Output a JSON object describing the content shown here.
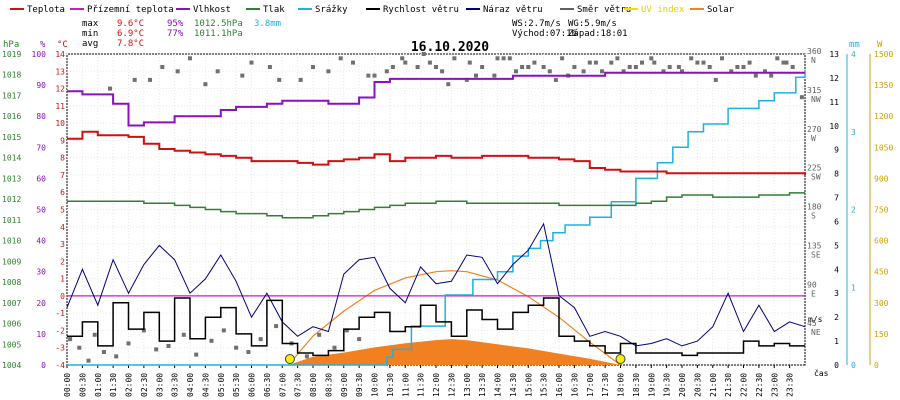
{
  "chart_data": {
    "type": "line",
    "title": "16.10.2020",
    "legend": [
      {
        "label": "Teplota",
        "color": "#d01010"
      },
      {
        "label": "Přízemní teplota",
        "color": "#c020c0"
      },
      {
        "label": "Vlhkost",
        "color": "#8a10c0"
      },
      {
        "label": "Tlak",
        "color": "#308030"
      },
      {
        "label": "Srážky",
        "color": "#20b0e0"
      },
      {
        "label": "Rychlost větru",
        "color": "#000000"
      },
      {
        "label": "Náraz větru",
        "color": "#000080"
      },
      {
        "label": "Směr větru",
        "color": "#606060"
      },
      {
        "label": "UV index",
        "color": "#f0e000"
      },
      {
        "label": "Solar",
        "color": "#f08020"
      }
    ],
    "stats": {
      "max_label": "max",
      "max_temp": "9.6°C",
      "max_hum": "95%",
      "max_press": "1012.5hPa",
      "rain": "3.8mm",
      "min_label": "min",
      "min_temp": "6.9°C",
      "min_hum": "77%",
      "min_press": "1011.1hPa",
      "avg_label": "avg",
      "avg_temp": "7.8°C",
      "ws": "WS:2.7m/s",
      "wg": "WG:5.9m/s",
      "sunrise": "Východ:07:16",
      "sunset": "Západ:18:01"
    },
    "axes": {
      "hpa_title": "hPa",
      "pct_title": "%",
      "degc_title": "°C",
      "hpa_ticks": [
        "1019",
        "1018",
        "1017",
        "1016",
        "1015",
        "1014",
        "1013",
        "1012",
        "1011",
        "1010",
        "1009",
        "1008",
        "1007",
        "1006",
        "1005",
        "1004"
      ],
      "pct_ticks": [
        "100",
        "90",
        "80",
        "70",
        "60",
        "50",
        "40",
        "30",
        "20",
        "10",
        "0"
      ],
      "degc_ticks": [
        "14",
        "13",
        "12",
        "11",
        "10",
        "9",
        "8",
        "7",
        "6",
        "5",
        "4",
        "3",
        "2",
        "1",
        "0",
        "-1",
        "-2",
        "-3",
        "-4"
      ],
      "dir_ticks": [
        "360\nN",
        "315\nNW",
        "270\nW",
        "225\nSW",
        "180\nS",
        "135\nSE",
        "90\nE",
        "45\nNE"
      ],
      "mm_title": "mm",
      "mm_ticks": [
        "4",
        "3",
        "2",
        "1",
        "0"
      ],
      "ms_title": "m/s",
      "ms_ticks": [
        "13",
        "12",
        "11",
        "10",
        "9",
        "8",
        "7",
        "6",
        "5",
        "4",
        "3",
        "2",
        "1",
        "0"
      ],
      "wm2_title": "W",
      "wm2_ticks": [
        "1500",
        "1350",
        "1200",
        "1050",
        "900",
        "750",
        "600",
        "450",
        "300",
        "150",
        "0"
      ],
      "x_title": "čas",
      "x_ticks": [
        "00:00",
        "00:30",
        "01:00",
        "01:30",
        "02:00",
        "02:30",
        "03:00",
        "03:30",
        "04:00",
        "04:30",
        "05:00",
        "05:30",
        "06:00",
        "06:30",
        "07:00",
        "07:30",
        "08:00",
        "08:30",
        "09:00",
        "09:30",
        "10:00",
        "10:30",
        "11:00",
        "11:30",
        "12:00",
        "12:30",
        "13:00",
        "13:30",
        "14:00",
        "14:30",
        "15:00",
        "15:30",
        "16:00",
        "16:30",
        "17:00",
        "17:30",
        "18:00",
        "18:30",
        "19:00",
        "19:30",
        "20:00",
        "20:30",
        "21:00",
        "21:30",
        "22:00",
        "22:30",
        "23:00",
        "23:30"
      ]
    },
    "temperature_c": {
      "x_hours": [
        0,
        0.5,
        1,
        1.5,
        2,
        2.5,
        3,
        3.5,
        4,
        4.5,
        5,
        5.5,
        6,
        6.5,
        7,
        7.5,
        8,
        8.5,
        9,
        9.5,
        10,
        10.5,
        11,
        11.5,
        12,
        12.5,
        13,
        13.5,
        14,
        14.5,
        15,
        15.5,
        16,
        16.5,
        17,
        17.5,
        18,
        18.5,
        19,
        19.5,
        20,
        20.5,
        21,
        21.5,
        22,
        22.5,
        23,
        23.5,
        24
      ],
      "values": [
        9.1,
        9.5,
        9.3,
        9.3,
        9.2,
        8.8,
        8.5,
        8.4,
        8.3,
        8.2,
        8.1,
        8.0,
        7.8,
        7.8,
        7.8,
        7.7,
        7.6,
        7.8,
        7.9,
        8.0,
        8.2,
        7.8,
        8.0,
        8.0,
        8.1,
        8.0,
        8.0,
        8.1,
        8.1,
        8.1,
        8.0,
        8.0,
        7.9,
        7.8,
        7.4,
        7.3,
        7.2,
        7.2,
        7.2,
        7.1,
        7.1,
        7.1,
        7.1,
        7.1,
        7.1,
        7.1,
        7.1,
        7.1,
        7.0
      ]
    },
    "humidity_pct": {
      "x_hours": [
        0,
        0.5,
        1,
        1.5,
        2,
        2.5,
        3,
        3.5,
        4,
        4.5,
        5,
        5.5,
        6,
        6.5,
        7,
        7.5,
        8,
        8.5,
        9,
        9.5,
        10,
        10.5,
        11,
        11.5,
        12,
        12.5,
        13,
        13.5,
        14,
        14.5,
        15,
        15.5,
        16,
        16.5,
        17,
        17.5,
        18,
        18.5,
        19,
        19.5,
        20,
        20.5,
        21,
        21.5,
        22,
        22.5,
        23,
        23.5,
        24
      ],
      "values": [
        88,
        87,
        87,
        84,
        77,
        78,
        78,
        80,
        80,
        80,
        82,
        83,
        83,
        84,
        85,
        85,
        85,
        84,
        84,
        86,
        91,
        92,
        92,
        92,
        92,
        92,
        92,
        92,
        92,
        93,
        93,
        93,
        93,
        93,
        93,
        94,
        94,
        94,
        94,
        94,
        94,
        94,
        94,
        94,
        94,
        94,
        94,
        94,
        94
      ]
    },
    "pressure_hpa": {
      "x_hours": [
        0,
        0.5,
        1,
        1.5,
        2,
        2.5,
        3,
        3.5,
        4,
        4.5,
        5,
        5.5,
        6,
        6.5,
        7,
        7.5,
        8,
        8.5,
        9,
        9.5,
        10,
        10.5,
        11,
        11.5,
        12,
        12.5,
        13,
        13.5,
        14,
        14.5,
        15,
        15.5,
        16,
        16.5,
        17,
        17.5,
        18,
        18.5,
        19,
        19.5,
        20,
        20.5,
        21,
        21.5,
        22,
        22.5,
        23,
        23.5,
        24
      ],
      "values": [
        1011.9,
        1011.9,
        1011.9,
        1011.9,
        1011.9,
        1011.8,
        1011.8,
        1011.7,
        1011.6,
        1011.5,
        1011.4,
        1011.3,
        1011.3,
        1011.2,
        1011.1,
        1011.1,
        1011.2,
        1011.3,
        1011.4,
        1011.5,
        1011.6,
        1011.7,
        1011.8,
        1011.8,
        1011.9,
        1011.9,
        1011.8,
        1011.8,
        1011.8,
        1011.8,
        1011.8,
        1011.8,
        1011.7,
        1011.7,
        1011.7,
        1011.7,
        1011.7,
        1011.8,
        1011.9,
        1012.1,
        1012.2,
        1012.2,
        1012.1,
        1012.1,
        1012.1,
        1012.2,
        1012.2,
        1012.3,
        1012.3
      ]
    },
    "ground_temperature_c": {
      "value": 0
    },
    "rain_mm": {
      "x_hours": [
        0,
        10.4,
        10.6,
        11.2,
        12.3,
        13.2,
        14.0,
        14.5,
        15.0,
        15.4,
        15.8,
        16.2,
        16.6,
        17.0,
        17.7,
        18.5,
        19.2,
        19.7,
        20.2,
        20.7,
        21.5,
        22.5,
        23.0,
        23.7,
        24
      ],
      "values": [
        0,
        0.1,
        0.2,
        0.5,
        0.9,
        1.1,
        1.2,
        1.4,
        1.5,
        1.6,
        1.7,
        1.8,
        1.8,
        1.9,
        2.1,
        2.4,
        2.6,
        2.8,
        3.0,
        3.1,
        3.3,
        3.4,
        3.5,
        3.7,
        3.8
      ]
    },
    "wind_speed_ms": {
      "x_hours": [
        0,
        0.5,
        1,
        1.5,
        2,
        2.5,
        3,
        3.5,
        4,
        4.5,
        5,
        5.5,
        6,
        6.5,
        7,
        7.5,
        8,
        8.5,
        9,
        9.5,
        10,
        10.5,
        11,
        11.5,
        12,
        12.5,
        13,
        13.5,
        14,
        14.5,
        15,
        15.5,
        16,
        16.5,
        17,
        17.5,
        18,
        18.5,
        19,
        19.5,
        20,
        20.5,
        21,
        21.5,
        22,
        22.5,
        23,
        23.5,
        24
      ],
      "values": [
        1.2,
        1.8,
        0.8,
        2.6,
        1.5,
        2.2,
        1.0,
        2.8,
        1.1,
        2.0,
        2.4,
        1.3,
        0.8,
        2.7,
        0.9,
        0.5,
        0.4,
        0.6,
        1.5,
        2.0,
        2.2,
        1.4,
        1.6,
        2.5,
        1.8,
        1.2,
        2.3,
        1.9,
        1.5,
        2.2,
        2.5,
        2.8,
        1.2,
        1.0,
        0.8,
        0.5,
        0.9,
        0.5,
        0.5,
        0.5,
        0.4,
        0.5,
        0.5,
        0.5,
        1.0,
        0.8,
        0.9,
        0.8,
        0.8
      ]
    },
    "wind_gust_ms": {
      "x_hours": [
        0,
        0.5,
        1,
        1.5,
        2,
        2.5,
        3,
        3.5,
        4,
        4.5,
        5,
        5.5,
        6,
        6.5,
        7,
        7.5,
        8,
        8.5,
        9,
        9.5,
        10,
        10.5,
        11,
        11.5,
        12,
        12.5,
        13,
        13.5,
        14,
        14.5,
        15,
        15.5,
        16,
        16.5,
        17,
        17.5,
        18,
        18.5,
        19,
        19.5,
        20,
        20.5,
        21,
        21.5,
        22,
        22.5,
        23,
        23.5,
        24
      ],
      "values": [
        2.4,
        4.0,
        2.5,
        4.4,
        3.0,
        4.2,
        5.0,
        4.4,
        3.0,
        3.6,
        4.6,
        3.5,
        2.0,
        3.0,
        1.8,
        1.2,
        1.6,
        1.4,
        3.8,
        4.4,
        4.5,
        3.2,
        2.6,
        4.1,
        3.4,
        3.5,
        4.6,
        4.5,
        3.4,
        4.2,
        4.8,
        5.9,
        2.9,
        2.4,
        1.2,
        1.4,
        1.2,
        0.8,
        0.9,
        1.1,
        0.8,
        1.0,
        1.6,
        3.0,
        1.4,
        2.5,
        1.4,
        1.8,
        1.6
      ]
    },
    "wind_dir_deg": {
      "x_hours": [
        0.1,
        0.4,
        0.9,
        1.2,
        1.6,
        2.0,
        2.5,
        2.9,
        3.3,
        3.8,
        4.2,
        4.7,
        5.1,
        5.5,
        5.9,
        6.3,
        6.8,
        7.3,
        7.8,
        8.2,
        8.7,
        9.1,
        9.5,
        10.0,
        10.4,
        10.9,
        11.4,
        11.8,
        12.2,
        12.6,
        13.1,
        13.5,
        13.9,
        14.4,
        14.8,
        15.2,
        15.7,
        16.1,
        16.5,
        17.0,
        17.4,
        17.9,
        18.3,
        18.7,
        19.1,
        19.6,
        20.0,
        20.5,
        20.9,
        21.3,
        21.8,
        22.2,
        22.7,
        23.1,
        23.6,
        23.9,
        1.4,
        2.7,
        3.6,
        4.5,
        5.7,
        6.6,
        7.6,
        8.5,
        9.3,
        10.6,
        11.6,
        12.4,
        13.3,
        14.2,
        15.0,
        15.9,
        16.8,
        17.7,
        18.5,
        19.4,
        20.3,
        21.1,
        22.0,
        22.9,
        23.4,
        0.7,
        2.2,
        3.1,
        4.0,
        4.9,
        6.0,
        6.9,
        8.0,
        8.9,
        9.8,
        11.0,
        12.0,
        13.0,
        14.0,
        14.6,
        15.5,
        16.3,
        17.2,
        18.1,
        19.0,
        19.9,
        20.7,
        21.6,
        22.4,
        23.3
      ],
      "values": [
        30,
        20,
        35,
        15,
        10,
        25,
        40,
        18,
        22,
        35,
        12,
        28,
        40,
        20,
        15,
        30,
        45,
        25,
        10,
        35,
        20,
        40,
        30,
        335,
        340,
        355,
        345,
        350,
        340,
        355,
        350,
        345,
        335,
        355,
        345,
        350,
        340,
        355,
        345,
        350,
        340,
        355,
        345,
        350,
        350,
        345,
        340,
        350,
        345,
        355,
        345,
        350,
        340,
        355,
        345,
        310,
        320,
        330,
        340,
        325,
        335,
        345,
        330,
        340,
        350,
        345,
        360,
        325,
        335,
        355,
        345,
        330,
        340,
        350,
        345,
        340,
        355,
        330,
        345,
        335,
        350,
        5,
        330,
        345,
        355,
        340,
        350,
        330,
        345,
        355,
        335,
        350,
        345,
        330,
        355,
        340,
        345,
        335,
        350,
        340,
        355,
        345,
        350,
        340,
        335,
        350
      ]
    },
    "solar_wm2": {
      "x_hours": [
        7.2,
        8,
        9,
        10,
        11,
        12,
        12.5,
        13,
        14,
        15,
        16,
        17,
        18.0
      ],
      "values": [
        0,
        40,
        60,
        85,
        105,
        120,
        125,
        120,
        100,
        80,
        55,
        30,
        0
      ]
    },
    "solar_clear_sky_wm2": {
      "x_hours": [
        7.2,
        8,
        9,
        10,
        11,
        12,
        12.5,
        13,
        14,
        15,
        16,
        17,
        18.0
      ],
      "values": [
        0,
        140,
        260,
        360,
        420,
        450,
        455,
        450,
        410,
        330,
        230,
        110,
        0
      ]
    },
    "uv_index_markers_hours": [
      7.25,
      18.0
    ]
  }
}
